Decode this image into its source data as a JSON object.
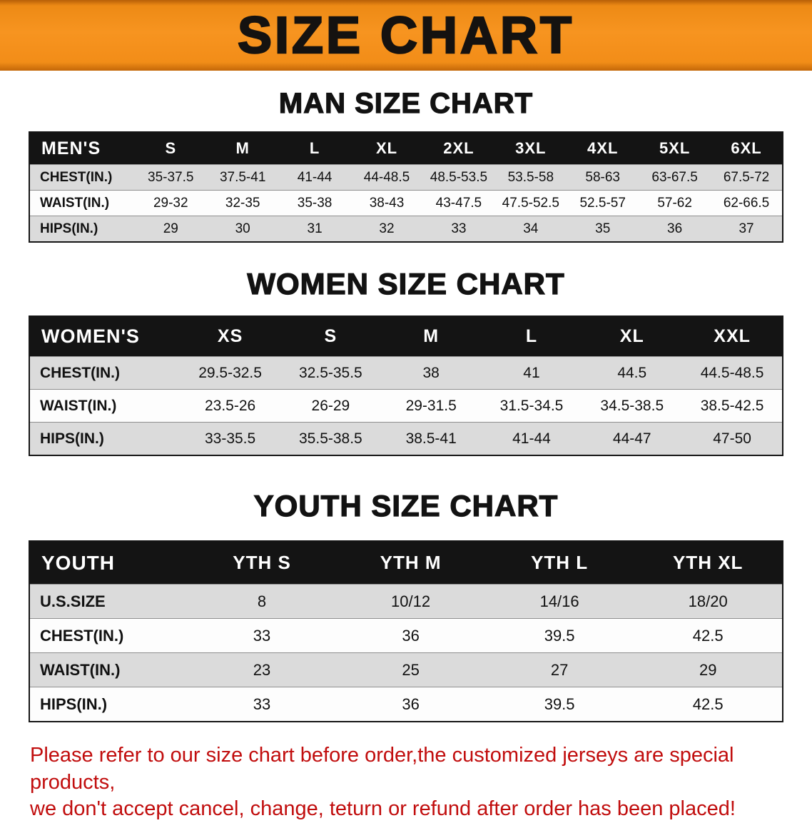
{
  "banner": {
    "title": "SIZE CHART"
  },
  "sections": [
    {
      "id": "men",
      "heading": "MAN SIZE CHART",
      "table": {
        "label": "MEN'S",
        "columns": [
          "S",
          "M",
          "L",
          "XL",
          "2XL",
          "3XL",
          "4XL",
          "5XL",
          "6XL"
        ],
        "rows": [
          {
            "label": "CHEST(IN.)",
            "values": [
              "35-37.5",
              "37.5-41",
              "41-44",
              "44-48.5",
              "48.5-53.5",
              "53.5-58",
              "58-63",
              "63-67.5",
              "67.5-72"
            ]
          },
          {
            "label": "WAIST(IN.)",
            "values": [
              "29-32",
              "32-35",
              "35-38",
              "38-43",
              "43-47.5",
              "47.5-52.5",
              "52.5-57",
              "57-62",
              "62-66.5"
            ]
          },
          {
            "label": "HIPS(IN.)",
            "values": [
              "29",
              "30",
              "31",
              "32",
              "33",
              "34",
              "35",
              "36",
              "37"
            ]
          }
        ]
      }
    },
    {
      "id": "women",
      "heading": "WOMEN SIZE CHART",
      "table": {
        "label": "WOMEN'S",
        "columns": [
          "XS",
          "S",
          "M",
          "L",
          "XL",
          "XXL"
        ],
        "rows": [
          {
            "label": "CHEST(IN.)",
            "values": [
              "29.5-32.5",
              "32.5-35.5",
              "38",
              "41",
              "44.5",
              "44.5-48.5"
            ]
          },
          {
            "label": "WAIST(IN.)",
            "values": [
              "23.5-26",
              "26-29",
              "29-31.5",
              "31.5-34.5",
              "34.5-38.5",
              "38.5-42.5"
            ]
          },
          {
            "label": "HIPS(IN.)",
            "values": [
              "33-35.5",
              "35.5-38.5",
              "38.5-41",
              "41-44",
              "44-47",
              "47-50"
            ]
          }
        ]
      }
    },
    {
      "id": "youth",
      "heading": "YOUTH SIZE CHART",
      "table": {
        "label": "YOUTH",
        "columns": [
          "YTH S",
          "YTH M",
          "YTH L",
          "YTH XL"
        ],
        "rows": [
          {
            "label": "U.S.SIZE",
            "values": [
              "8",
              "10/12",
              "14/16",
              "18/20"
            ]
          },
          {
            "label": "CHEST(IN.)",
            "values": [
              "33",
              "36",
              "39.5",
              "42.5"
            ]
          },
          {
            "label": "WAIST(IN.)",
            "values": [
              "23",
              "25",
              "27",
              "29"
            ]
          },
          {
            "label": "HIPS(IN.)",
            "values": [
              "33",
              "36",
              "39.5",
              "42.5"
            ]
          }
        ]
      }
    }
  ],
  "note": {
    "lines": [
      "Please refer to our size chart before order,the customized jerseys are special products,",
      "we don't accept cancel, change, teturn or refund after order has been placed!"
    ]
  },
  "colors": {
    "banner_orange": "#f5921f",
    "header_black": "#141414",
    "row_gray": "#dbdbdb",
    "note_red": "#c10d0d"
  }
}
